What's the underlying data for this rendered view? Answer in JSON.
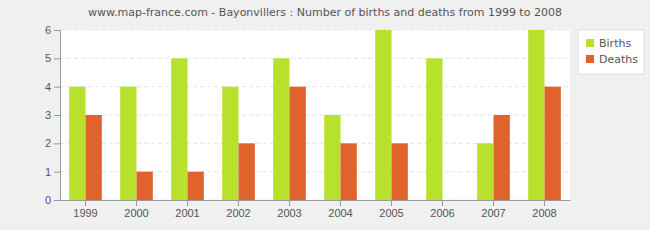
{
  "chart_data": {
    "type": "bar",
    "title": "www.map-france.com - Bayonvillers : Number of births and deaths from 1999 to 2008",
    "categories": [
      "1999",
      "2000",
      "2001",
      "2002",
      "2003",
      "2004",
      "2005",
      "2006",
      "2007",
      "2008"
    ],
    "series": [
      {
        "name": "Births",
        "color": "#b8e12e",
        "values": [
          4,
          4,
          5,
          4,
          5,
          3,
          6,
          5,
          2,
          6
        ]
      },
      {
        "name": "Deaths",
        "color": "#e0632e",
        "values": [
          3,
          1,
          1,
          2,
          4,
          2,
          2,
          0,
          3,
          4
        ]
      }
    ],
    "ylim": [
      0,
      6
    ],
    "yticks": [
      0,
      1,
      2,
      3,
      4,
      5,
      6
    ],
    "grid": true,
    "legend": "upper right"
  }
}
